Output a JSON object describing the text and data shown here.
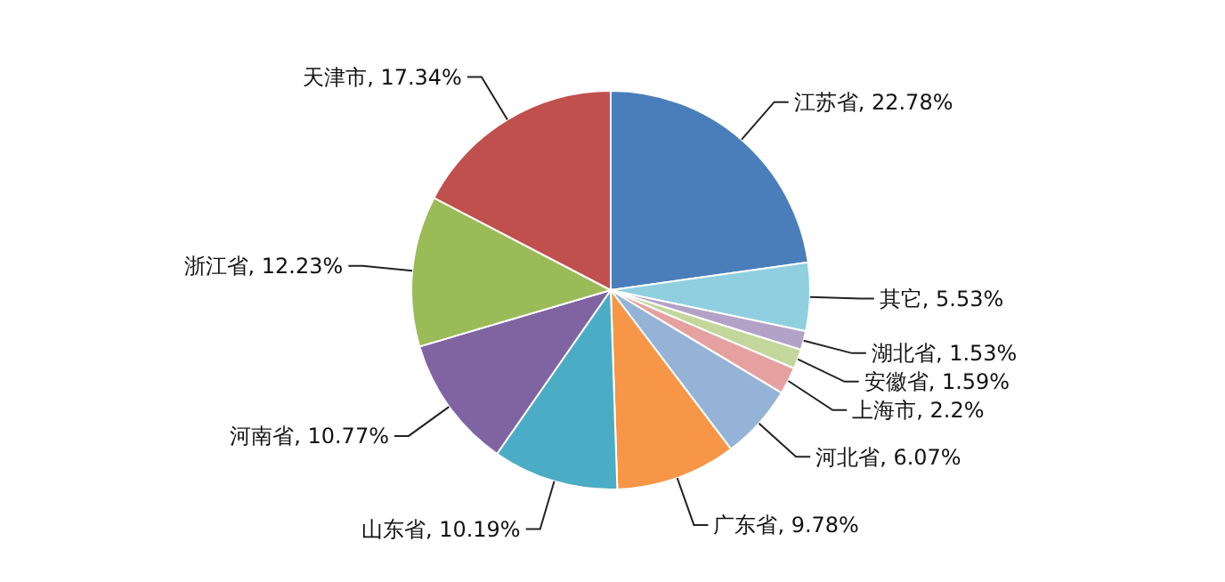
{
  "chart_data": {
    "type": "pie",
    "categories": [
      "江苏省",
      "其它",
      "湖北省",
      "安徽省",
      "上海市",
      "河北省",
      "广东省",
      "山东省",
      "河南省",
      "浙江省",
      "天津市"
    ],
    "values": [
      22.78,
      5.53,
      1.53,
      1.59,
      2.2,
      6.07,
      9.78,
      10.19,
      10.77,
      12.23,
      17.34
    ],
    "value_labels": [
      "22.78%",
      "5.53%",
      "1.53%",
      "1.59%",
      "2.2%",
      "6.07%",
      "9.78%",
      "10.19%",
      "10.77%",
      "12.23%",
      "17.34%"
    ],
    "colors": [
      "#4a7ebb",
      "#8fcfe0",
      "#b3a2c7",
      "#c3d69b",
      "#e6a0a0",
      "#95b3d7",
      "#f79646",
      "#4bacc6",
      "#8064a2",
      "#9bbb59",
      "#c0504d"
    ],
    "legend": false
  }
}
